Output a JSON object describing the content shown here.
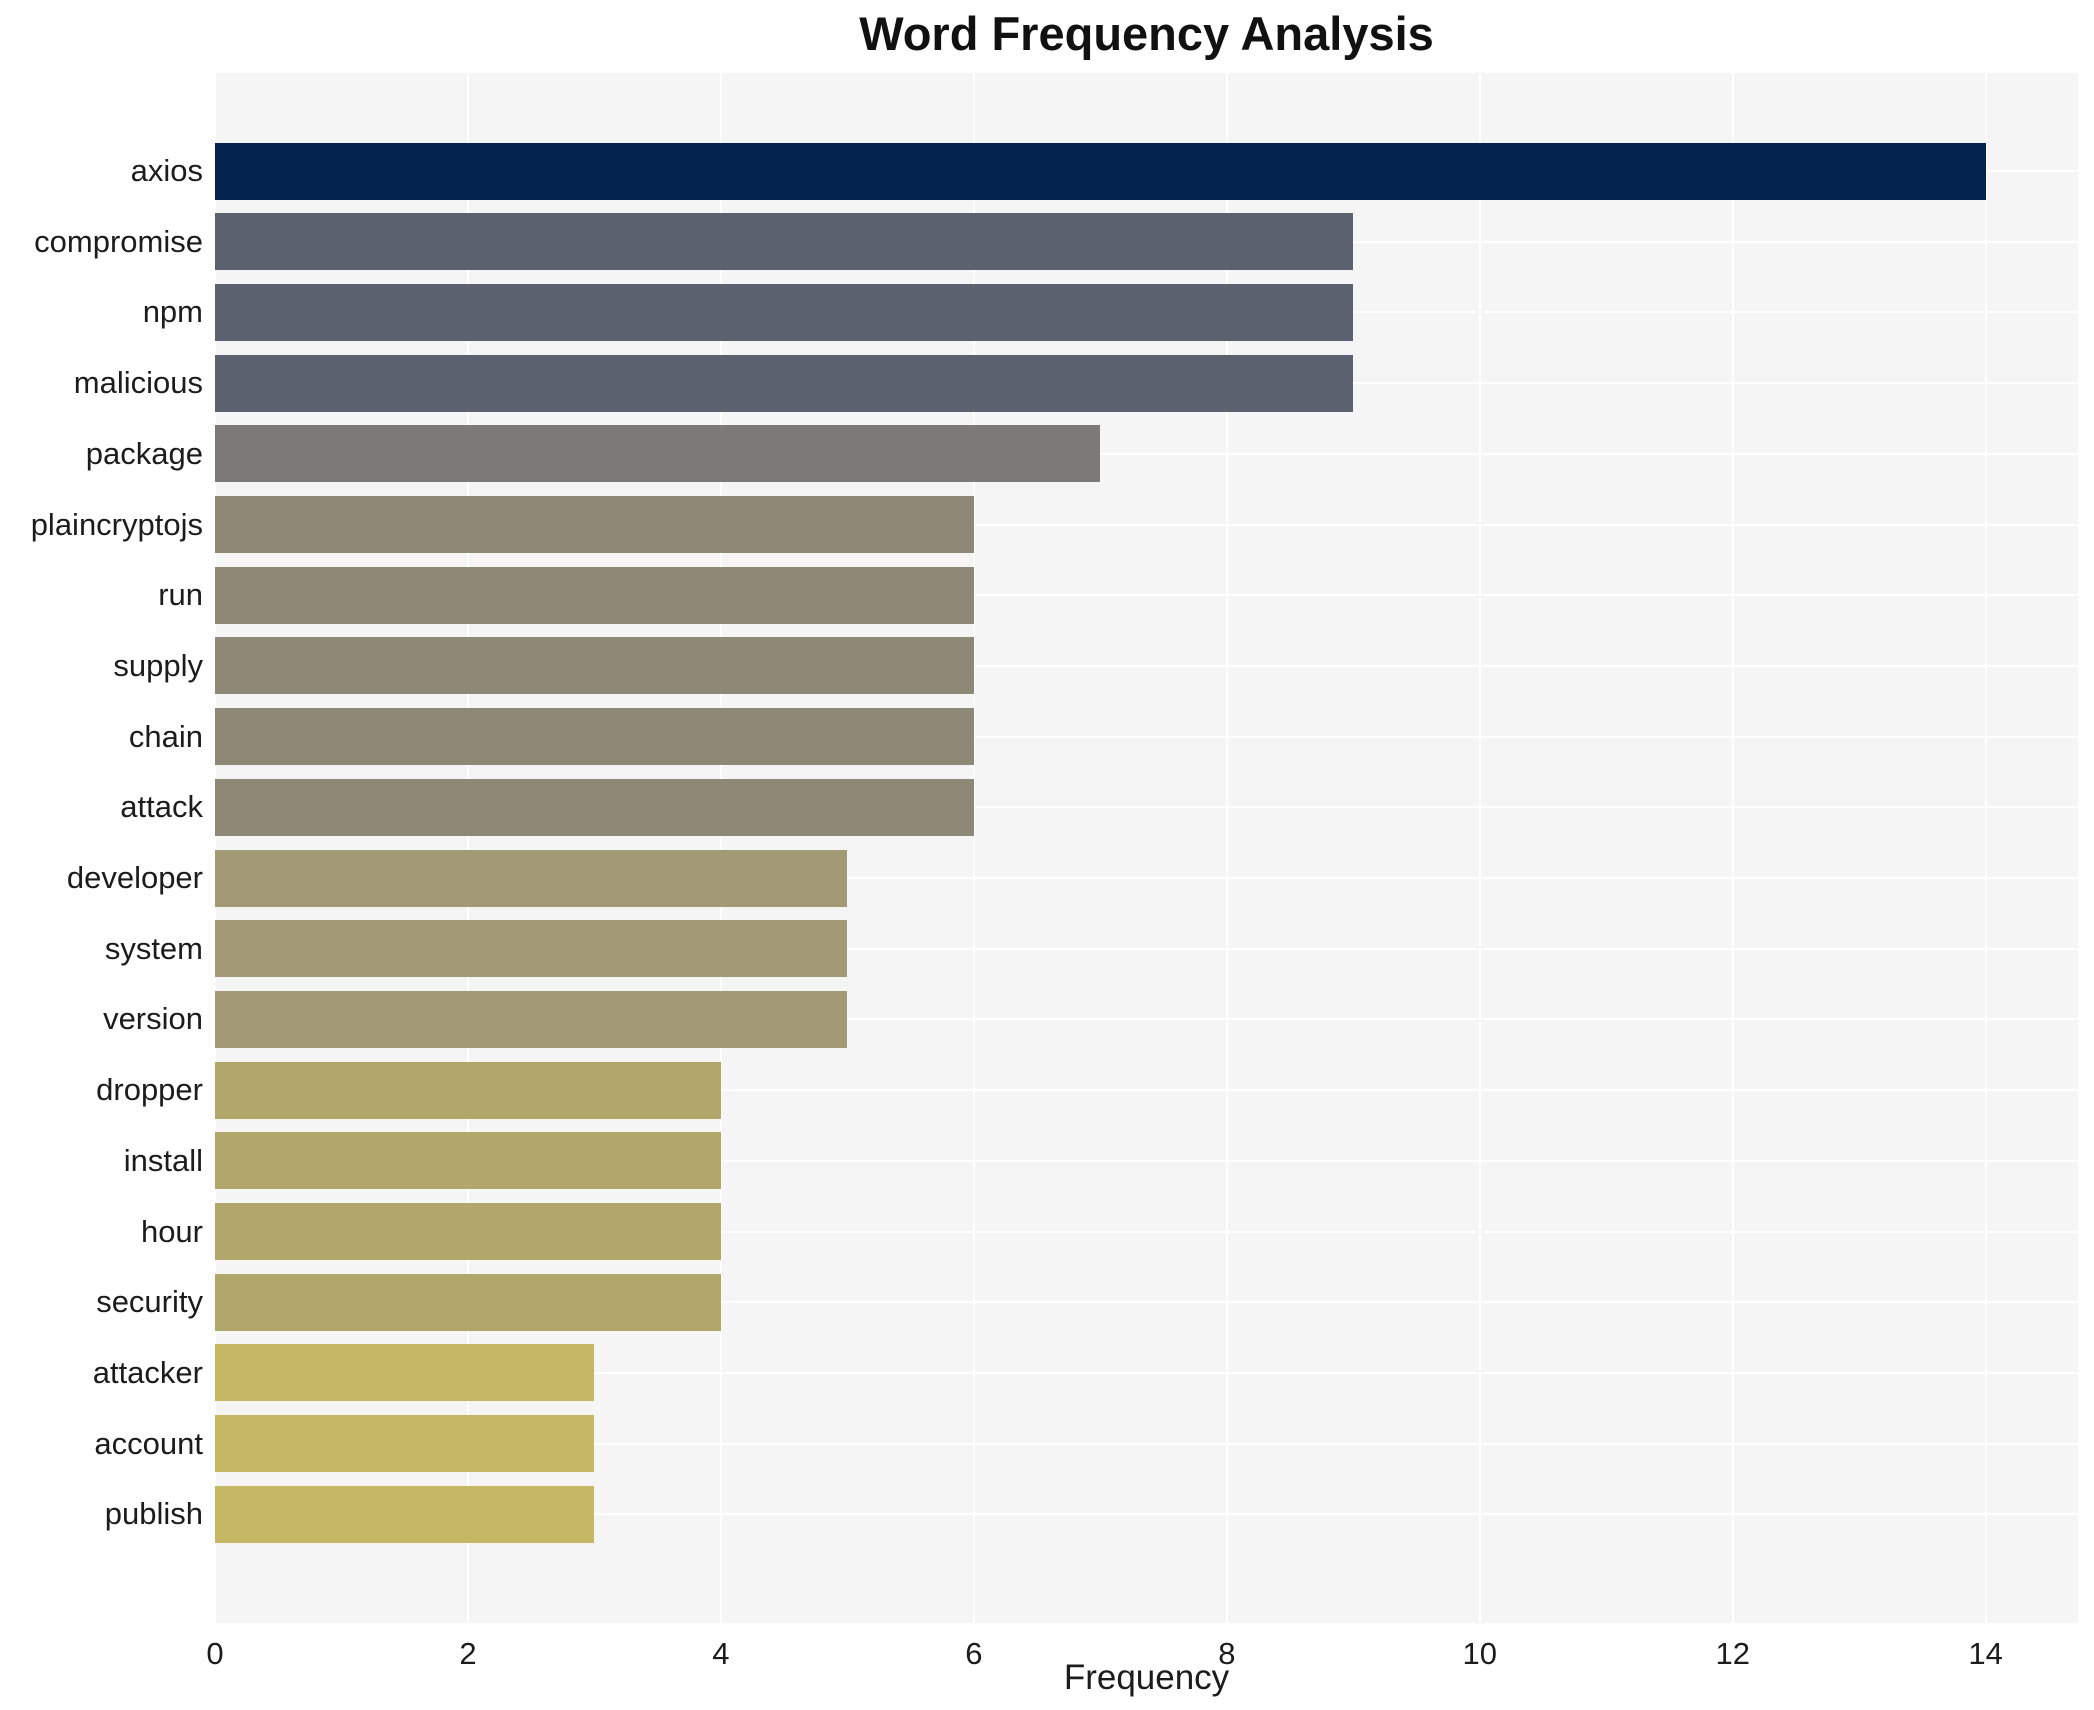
{
  "title": "Word Frequency Analysis",
  "chart_data": {
    "type": "bar",
    "orientation": "horizontal",
    "title": "Word Frequency Analysis",
    "xlabel": "Frequency",
    "ylabel": "",
    "xlim": [
      0,
      14.73
    ],
    "xticks": [
      0,
      2,
      4,
      6,
      8,
      10,
      12,
      14
    ],
    "grid": true,
    "legend": "none",
    "panel_background": "#f5f5f5",
    "grid_color": "#ffffff",
    "categories": [
      "axios",
      "compromise",
      "npm",
      "malicious",
      "package",
      "plaincryptojs",
      "run",
      "supply",
      "chain",
      "attack",
      "developer",
      "system",
      "version",
      "dropper",
      "install",
      "hour",
      "security",
      "attacker",
      "account",
      "publish"
    ],
    "values": [
      14,
      9,
      9,
      9,
      7,
      6,
      6,
      6,
      6,
      6,
      5,
      5,
      5,
      4,
      4,
      4,
      4,
      3,
      3,
      3
    ],
    "bar_colors": [
      "#04234e",
      "#5b616e",
      "#5b616e",
      "#5b616e",
      "#7b7a76",
      "#8e8877",
      "#8e8877",
      "#8e8877",
      "#8e8877",
      "#8e8877",
      "#a19a75",
      "#a19a75",
      "#a19a75",
      "#b2a76b",
      "#b2a76b",
      "#b2a76b",
      "#b2a76b",
      "#c6b765",
      "#c6b765",
      "#c6b765"
    ]
  }
}
